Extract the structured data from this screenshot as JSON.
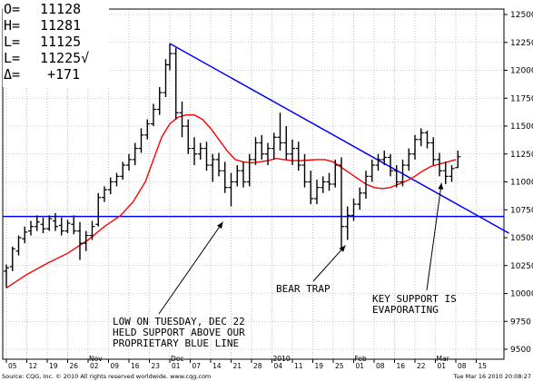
{
  "header": {
    "open_label": "O=",
    "open_value": "11128",
    "high_label": "H=",
    "high_value": "11281",
    "low_label": "L=",
    "low_value": "11125",
    "last_label": "L=",
    "last_value": "11225√",
    "change_label": "Δ=",
    "change_value": "+171"
  },
  "footer": {
    "left": "Source: CQG, Inc. © 2010 All rights reserved worldwide. www.cqg.com",
    "right": "Tue Mar 16 2010 20:08:27"
  },
  "chart_data": {
    "type": "ohlc",
    "title": "",
    "ylim": [
      9500,
      12500
    ],
    "yticks": [
      "12500",
      "12250",
      "12000",
      "11750",
      "11500",
      "11250",
      "11000",
      "10750",
      "10500",
      "10250",
      "10000",
      "9750",
      "9500"
    ],
    "x_day_labels": [
      "05",
      "12",
      "19",
      "26",
      "02",
      "09",
      "16",
      "23",
      "01",
      "07",
      "14",
      "21",
      "28",
      "04",
      "11",
      "19",
      "25",
      "01",
      "08",
      "16",
      "22",
      "01",
      "08",
      "15"
    ],
    "x_month_labels": [
      {
        "label": "Nov",
        "at_day_index": 4
      },
      {
        "label": "Dec",
        "at_day_index": 8
      },
      {
        "label": "2010",
        "at_day_index": 13
      },
      {
        "label": "Feb",
        "at_day_index": 17
      },
      {
        "label": "Mar",
        "at_day_index": 21
      }
    ],
    "grid": true,
    "colors": {
      "bars": "#000000",
      "moving_average": "#ff0000",
      "trendline": "#0000ff",
      "support_line": "#0000ff",
      "grid": "#9a9a9a",
      "annotation_arrow": "#000000"
    },
    "support_level": 10690,
    "trendline": {
      "from": {
        "day": 8.0,
        "value": 12240
      },
      "to": {
        "day": 24.6,
        "value": 10540
      }
    },
    "bars": [
      {
        "d": 0.0,
        "o": 10200,
        "h": 10260,
        "l": 10050,
        "c": 10230
      },
      {
        "d": 0.3,
        "o": 10240,
        "h": 10420,
        "l": 10200,
        "c": 10400
      },
      {
        "d": 0.6,
        "o": 10380,
        "h": 10520,
        "l": 10340,
        "c": 10500
      },
      {
        "d": 0.9,
        "o": 10490,
        "h": 10600,
        "l": 10450,
        "c": 10550
      },
      {
        "d": 1.2,
        "o": 10560,
        "h": 10650,
        "l": 10520,
        "c": 10600
      },
      {
        "d": 1.5,
        "o": 10600,
        "h": 10700,
        "l": 10560,
        "c": 10640
      },
      {
        "d": 1.8,
        "o": 10620,
        "h": 10680,
        "l": 10540,
        "c": 10580
      },
      {
        "d": 2.1,
        "o": 10580,
        "h": 10700,
        "l": 10560,
        "c": 10670
      },
      {
        "d": 2.4,
        "o": 10650,
        "h": 10720,
        "l": 10560,
        "c": 10600
      },
      {
        "d": 2.7,
        "o": 10610,
        "h": 10680,
        "l": 10520,
        "c": 10560
      },
      {
        "d": 3.0,
        "o": 10560,
        "h": 10660,
        "l": 10540,
        "c": 10630
      },
      {
        "d": 3.3,
        "o": 10620,
        "h": 10700,
        "l": 10530,
        "c": 10560
      },
      {
        "d": 3.6,
        "o": 10560,
        "h": 10640,
        "l": 10300,
        "c": 10450
      },
      {
        "d": 3.9,
        "o": 10450,
        "h": 10560,
        "l": 10380,
        "c": 10520
      },
      {
        "d": 4.2,
        "o": 10520,
        "h": 10650,
        "l": 10480,
        "c": 10600
      },
      {
        "d": 4.5,
        "o": 10620,
        "h": 10900,
        "l": 10600,
        "c": 10860
      },
      {
        "d": 4.8,
        "o": 10860,
        "h": 10960,
        "l": 10820,
        "c": 10930
      },
      {
        "d": 5.1,
        "o": 10930,
        "h": 11040,
        "l": 10890,
        "c": 11000
      },
      {
        "d": 5.4,
        "o": 11000,
        "h": 11080,
        "l": 10960,
        "c": 11050
      },
      {
        "d": 5.7,
        "o": 11050,
        "h": 11180,
        "l": 11020,
        "c": 11150
      },
      {
        "d": 6.0,
        "o": 11150,
        "h": 11250,
        "l": 11100,
        "c": 11200
      },
      {
        "d": 6.3,
        "o": 11200,
        "h": 11350,
        "l": 11150,
        "c": 11300
      },
      {
        "d": 6.6,
        "o": 11300,
        "h": 11480,
        "l": 11260,
        "c": 11420
      },
      {
        "d": 6.9,
        "o": 11420,
        "h": 11560,
        "l": 11380,
        "c": 11520
      },
      {
        "d": 7.2,
        "o": 11520,
        "h": 11700,
        "l": 11500,
        "c": 11650
      },
      {
        "d": 7.5,
        "o": 11650,
        "h": 11850,
        "l": 11600,
        "c": 11800
      },
      {
        "d": 7.8,
        "o": 11800,
        "h": 12100,
        "l": 11760,
        "c": 12050
      },
      {
        "d": 8.0,
        "o": 12050,
        "h": 12240,
        "l": 12000,
        "c": 12150
      },
      {
        "d": 8.3,
        "o": 12150,
        "h": 12200,
        "l": 11560,
        "c": 11620
      },
      {
        "d": 8.6,
        "o": 11620,
        "h": 11720,
        "l": 11400,
        "c": 11500
      },
      {
        "d": 8.9,
        "o": 11500,
        "h": 11560,
        "l": 11250,
        "c": 11300
      },
      {
        "d": 9.2,
        "o": 11300,
        "h": 11400,
        "l": 11150,
        "c": 11250
      },
      {
        "d": 9.5,
        "o": 11250,
        "h": 11350,
        "l": 11200,
        "c": 11300
      },
      {
        "d": 9.8,
        "o": 11300,
        "h": 11360,
        "l": 11100,
        "c": 11150
      },
      {
        "d": 10.1,
        "o": 11150,
        "h": 11250,
        "l": 11000,
        "c": 11200
      },
      {
        "d": 10.4,
        "o": 11200,
        "h": 11260,
        "l": 11050,
        "c": 11100
      },
      {
        "d": 10.7,
        "o": 11100,
        "h": 11180,
        "l": 10900,
        "c": 10950
      },
      {
        "d": 11.0,
        "o": 10950,
        "h": 11080,
        "l": 10780,
        "c": 11000
      },
      {
        "d": 11.3,
        "o": 11000,
        "h": 11150,
        "l": 10960,
        "c": 11100
      },
      {
        "d": 11.6,
        "o": 11100,
        "h": 11180,
        "l": 10950,
        "c": 11000
      },
      {
        "d": 11.9,
        "o": 11000,
        "h": 11250,
        "l": 10960,
        "c": 11200
      },
      {
        "d": 12.2,
        "o": 11200,
        "h": 11400,
        "l": 11150,
        "c": 11350
      },
      {
        "d": 12.5,
        "o": 11350,
        "h": 11420,
        "l": 11200,
        "c": 11250
      },
      {
        "d": 12.8,
        "o": 11250,
        "h": 11350,
        "l": 11150,
        "c": 11300
      },
      {
        "d": 13.1,
        "o": 11300,
        "h": 11440,
        "l": 11200,
        "c": 11400
      },
      {
        "d": 13.4,
        "o": 11400,
        "h": 11620,
        "l": 11280,
        "c": 11350
      },
      {
        "d": 13.7,
        "o": 11350,
        "h": 11500,
        "l": 11200,
        "c": 11250
      },
      {
        "d": 14.0,
        "o": 11250,
        "h": 11380,
        "l": 11150,
        "c": 11300
      },
      {
        "d": 14.3,
        "o": 11300,
        "h": 11360,
        "l": 11100,
        "c": 11150
      },
      {
        "d": 14.6,
        "o": 11150,
        "h": 11250,
        "l": 10950,
        "c": 11000
      },
      {
        "d": 14.9,
        "o": 11000,
        "h": 11100,
        "l": 10800,
        "c": 10850
      },
      {
        "d": 15.2,
        "o": 10850,
        "h": 11020,
        "l": 10800,
        "c": 10950
      },
      {
        "d": 15.5,
        "o": 10950,
        "h": 11050,
        "l": 10900,
        "c": 11000
      },
      {
        "d": 15.8,
        "o": 11000,
        "h": 11080,
        "l": 10920,
        "c": 10980
      },
      {
        "d": 16.1,
        "o": 10980,
        "h": 11200,
        "l": 10950,
        "c": 11150
      },
      {
        "d": 16.4,
        "o": 11150,
        "h": 11220,
        "l": 10400,
        "c": 10600
      },
      {
        "d": 16.7,
        "o": 10600,
        "h": 10780,
        "l": 10480,
        "c": 10700
      },
      {
        "d": 17.0,
        "o": 10700,
        "h": 10850,
        "l": 10650,
        "c": 10800
      },
      {
        "d": 17.3,
        "o": 10800,
        "h": 10950,
        "l": 10750,
        "c": 10900
      },
      {
        "d": 17.6,
        "o": 10900,
        "h": 11100,
        "l": 10850,
        "c": 11050
      },
      {
        "d": 17.9,
        "o": 11050,
        "h": 11200,
        "l": 11000,
        "c": 11150
      },
      {
        "d": 18.2,
        "o": 11150,
        "h": 11250,
        "l": 11100,
        "c": 11200
      },
      {
        "d": 18.5,
        "o": 11200,
        "h": 11280,
        "l": 11150,
        "c": 11220
      },
      {
        "d": 18.8,
        "o": 11220,
        "h": 11250,
        "l": 11050,
        "c": 11100
      },
      {
        "d": 19.1,
        "o": 11100,
        "h": 11150,
        "l": 10950,
        "c": 11000
      },
      {
        "d": 19.4,
        "o": 11000,
        "h": 11200,
        "l": 10960,
        "c": 11150
      },
      {
        "d": 19.7,
        "o": 11150,
        "h": 11300,
        "l": 11100,
        "c": 11250
      },
      {
        "d": 20.0,
        "o": 11250,
        "h": 11420,
        "l": 11200,
        "c": 11380
      },
      {
        "d": 20.3,
        "o": 11380,
        "h": 11480,
        "l": 11320,
        "c": 11440
      },
      {
        "d": 20.6,
        "o": 11440,
        "h": 11460,
        "l": 11300,
        "c": 11350
      },
      {
        "d": 20.9,
        "o": 11350,
        "h": 11400,
        "l": 11150,
        "c": 11200
      },
      {
        "d": 21.2,
        "o": 11200,
        "h": 11260,
        "l": 11050,
        "c": 11100
      },
      {
        "d": 21.5,
        "o": 11100,
        "h": 11180,
        "l": 10980,
        "c": 11050
      },
      {
        "d": 21.8,
        "o": 11050,
        "h": 11150,
        "l": 11000,
        "c": 11120
      },
      {
        "d": 22.1,
        "o": 11128,
        "h": 11281,
        "l": 11125,
        "c": 11225
      }
    ],
    "moving_average": [
      [
        0.0,
        10050
      ],
      [
        1.0,
        10170
      ],
      [
        2.0,
        10270
      ],
      [
        3.0,
        10360
      ],
      [
        4.0,
        10480
      ],
      [
        4.8,
        10600
      ],
      [
        5.6,
        10700
      ],
      [
        6.2,
        10820
      ],
      [
        6.8,
        11000
      ],
      [
        7.2,
        11200
      ],
      [
        7.6,
        11400
      ],
      [
        8.0,
        11520
      ],
      [
        8.4,
        11580
      ],
      [
        8.8,
        11600
      ],
      [
        9.2,
        11600
      ],
      [
        9.6,
        11560
      ],
      [
        10.0,
        11480
      ],
      [
        10.4,
        11380
      ],
      [
        10.8,
        11280
      ],
      [
        11.2,
        11200
      ],
      [
        11.6,
        11180
      ],
      [
        12.0,
        11170
      ],
      [
        12.4,
        11180
      ],
      [
        12.8,
        11190
      ],
      [
        13.2,
        11210
      ],
      [
        13.6,
        11200
      ],
      [
        14.0,
        11190
      ],
      [
        14.4,
        11190
      ],
      [
        14.8,
        11195
      ],
      [
        15.2,
        11200
      ],
      [
        15.6,
        11200
      ],
      [
        16.0,
        11180
      ],
      [
        16.4,
        11130
      ],
      [
        16.8,
        11080
      ],
      [
        17.2,
        11030
      ],
      [
        17.6,
        10980
      ],
      [
        18.0,
        10950
      ],
      [
        18.4,
        10940
      ],
      [
        18.8,
        10950
      ],
      [
        19.2,
        10980
      ],
      [
        19.6,
        11010
      ],
      [
        20.0,
        11050
      ],
      [
        20.4,
        11100
      ],
      [
        20.8,
        11140
      ],
      [
        21.2,
        11160
      ],
      [
        21.6,
        11180
      ],
      [
        22.0,
        11200
      ]
    ],
    "annotations": [
      {
        "text_lines": [
          "LOW ON TUESDAY, DEC 22",
          "HELD SUPPORT ABOVE OUR",
          "PROPRIETARY BLUE LINE"
        ],
        "points_to": {
          "day": 10.6,
          "value": 10690
        }
      },
      {
        "text_lines": [
          "BEAR TRAP"
        ],
        "points_to": {
          "day": 16.6,
          "value": 10480
        }
      },
      {
        "text_lines": [
          "KEY SUPPORT IS",
          "EVAPORATING"
        ],
        "points_to": {
          "day": 21.3,
          "value": 11040
        }
      }
    ]
  }
}
